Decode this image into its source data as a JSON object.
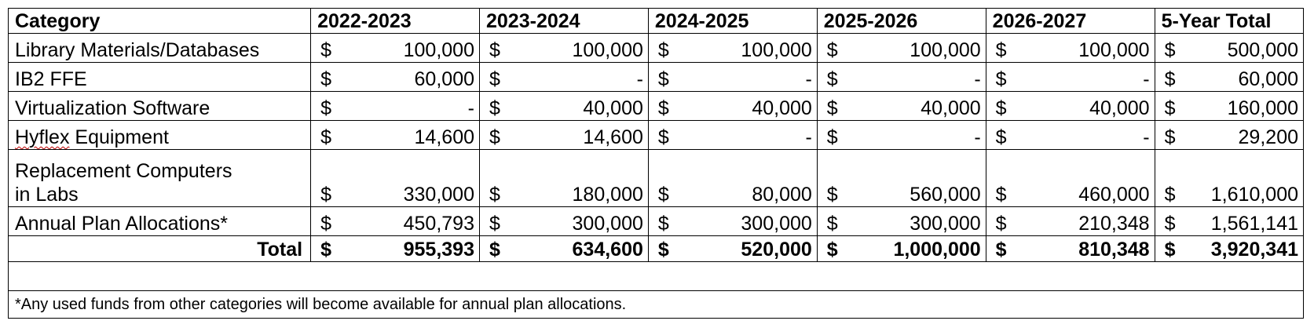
{
  "table": {
    "headers": [
      "Category",
      "2022-2023",
      "2023-2024",
      "2024-2025",
      "2025-2026",
      "2026-2027",
      "5-Year Total"
    ],
    "currency_symbol": "$",
    "rows": [
      {
        "category": "Library  Materials/Databases",
        "values": [
          "100,000",
          "100,000",
          "100,000",
          "100,000",
          "100,000",
          "500,000"
        ]
      },
      {
        "category": "IB2 FFE",
        "values": [
          "60,000",
          "-",
          "-",
          "-",
          "-",
          "60,000"
        ]
      },
      {
        "category": "Virtualization Software",
        "values": [
          "-",
          "40,000",
          "40,000",
          "40,000",
          "40,000",
          "160,000"
        ]
      },
      {
        "category": "Hyflex Equipment",
        "category_misspelled_word": "Hyflex",
        "category_rest": " Equipment",
        "values": [
          "14,600",
          "14,600",
          "-",
          "-",
          "-",
          "29,200"
        ]
      },
      {
        "category_line1": "Replacement Computers",
        "category_line2": "in Labs",
        "values": [
          "330,000",
          "180,000",
          "80,000",
          "560,000",
          "460,000",
          "1,610,000"
        ]
      },
      {
        "category": "Annual Plan Allocations*",
        "values": [
          "450,793",
          "300,000",
          "300,000",
          "300,000",
          "210,348",
          "1,561,141"
        ]
      }
    ],
    "total": {
      "label": "Total",
      "values": [
        "955,393",
        "634,600",
        "520,000",
        "1,000,000",
        "810,348",
        "3,920,341"
      ]
    },
    "footnote": "*Any used funds from other categories will become available for annual plan allocations."
  },
  "colors": {
    "border": "#000000",
    "spellcheck_underline": "#c00000"
  }
}
